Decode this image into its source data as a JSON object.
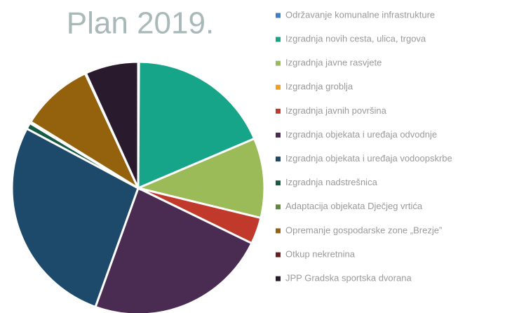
{
  "chart_data": {
    "type": "pie",
    "title": "Plan 2019.",
    "categories": [
      "Održavanje komunalne infrastrukture",
      "Izgradnja novih cesta, ulica, trgova",
      "Izgradnja javne rasvjete",
      "Izgradnja groblja",
      "Izgradnja javnih površina",
      "Izgradnja objekata i uređaja odvodnje",
      "Izgradnja objekata i uređaja vodoopskrbe",
      "Izgradnja nadstrešnica",
      "Adaptacija objekata Dječjeg vrtića",
      "Opremanje gospodarske zone „Brezje”",
      "Otkup nekretnina",
      "JPP Gradska sportska dvorana"
    ],
    "values": [
      0.1,
      18.5,
      10.2,
      0,
      3.4,
      23.3,
      27.3,
      0.8,
      0.2,
      9.3,
      0.1,
      6.8
    ],
    "colors": [
      "#3b7fc4",
      "#17a589",
      "#9bbb59",
      "#f0a020",
      "#c0392b",
      "#4a2b52",
      "#1d4a6b",
      "#145a47",
      "#5e8b3b",
      "#94610c",
      "#6b1e1e",
      "#2a1a2e"
    ]
  }
}
